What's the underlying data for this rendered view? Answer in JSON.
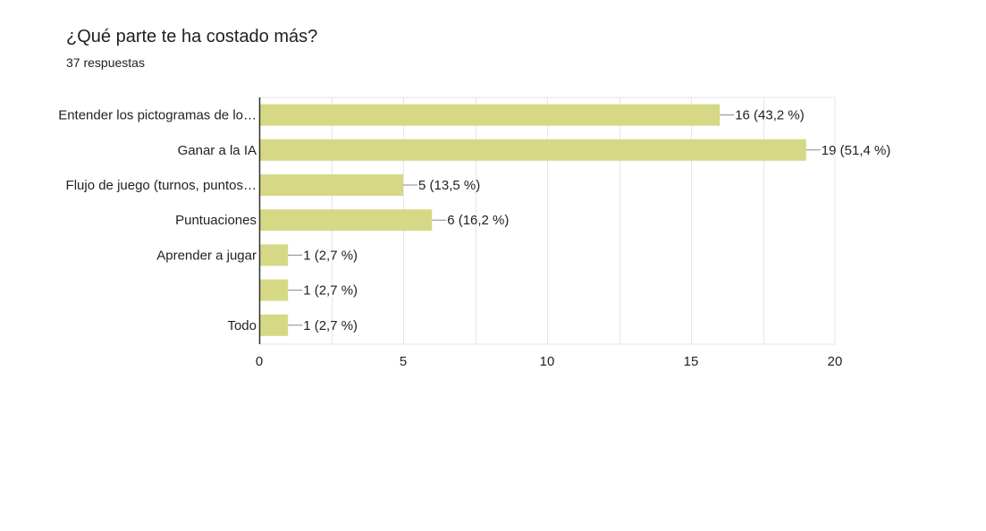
{
  "question": {
    "title": "¿Qué parte te ha costado más?",
    "responses": "37 respuestas"
  },
  "colors": {
    "bar": "#d6d886",
    "grid": "#e6e6e6",
    "axis": "#333333",
    "text": "#222222"
  },
  "chart_data": {
    "type": "bar",
    "orientation": "horizontal",
    "categories": [
      "Entender los pictogramas de lo…",
      "Ganar a la IA",
      "Flujo de juego (turnos, puntos…",
      "Puntuaciones",
      "Aprender a jugar",
      "",
      "Todo"
    ],
    "values": [
      16,
      19,
      5,
      6,
      1,
      1,
      1
    ],
    "data_labels": [
      "16 (43,2 %)",
      "19 (51,4 %)",
      "5 (13,5 %)",
      "6 (16,2 %)",
      "1 (2,7 %)",
      "1 (2,7 %)",
      "1 (2,7 %)"
    ],
    "xlim": [
      0,
      20
    ],
    "x_ticks": [
      0,
      5,
      10,
      15,
      20
    ],
    "grid": true
  }
}
